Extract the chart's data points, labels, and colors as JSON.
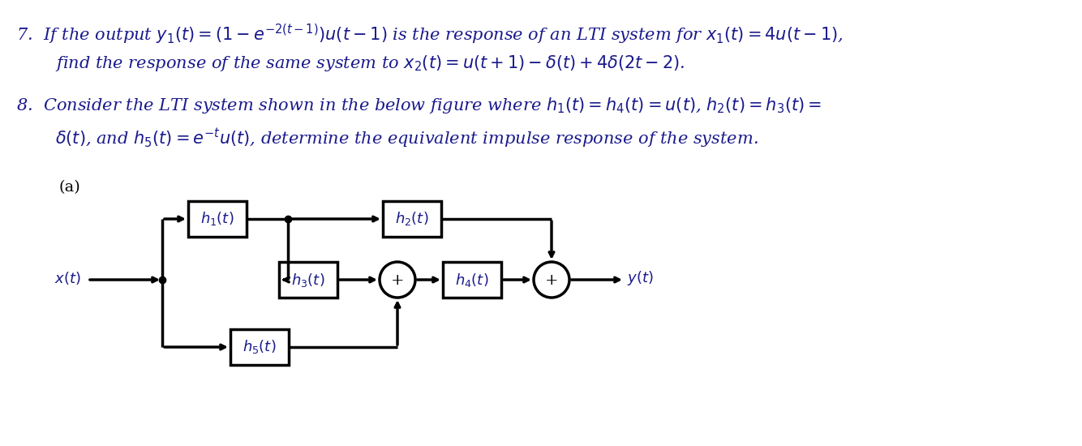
{
  "background_color": "#ffffff",
  "text_color": "#1a1a8c",
  "diagram_color": "#000000",
  "figsize": [
    13.34,
    5.5
  ],
  "dpi": 100,
  "line7_part1": "7.  If the output $y_1(t) = \\left(1 - e^{-2(t-1)}\\right)u(t-1)$ is the response of an LTI system for $x_1(t) = 4u(t-1)$,",
  "line7_part2": "find the response of the same system to $x_2(t) = u(t+1) - \\delta(t) + 4\\delta(2t-2)$.",
  "line8_part1": "8.  Consider the LTI system shown in the below figure where $h_1(t) = h_4(t) = u(t)$, $h_2(t) = h_3(t) =$",
  "line8_part2": "$\\delta(t)$, and $h_5(t) = e^{-t}u(t)$, determine the equivalent impulse response of the system.",
  "label_a": "(a)",
  "label_xt": "$x(t)$",
  "label_yt": "$y(t)$",
  "label_h1": "$h_1(t)$",
  "label_h2": "$h_2(t)$",
  "label_h3": "$h_3(t)$",
  "label_h4": "$h_4(t)$",
  "label_h5": "$h_5(t)$",
  "font_size_text": 15,
  "font_size_diagram": 13,
  "font_size_label": 14
}
